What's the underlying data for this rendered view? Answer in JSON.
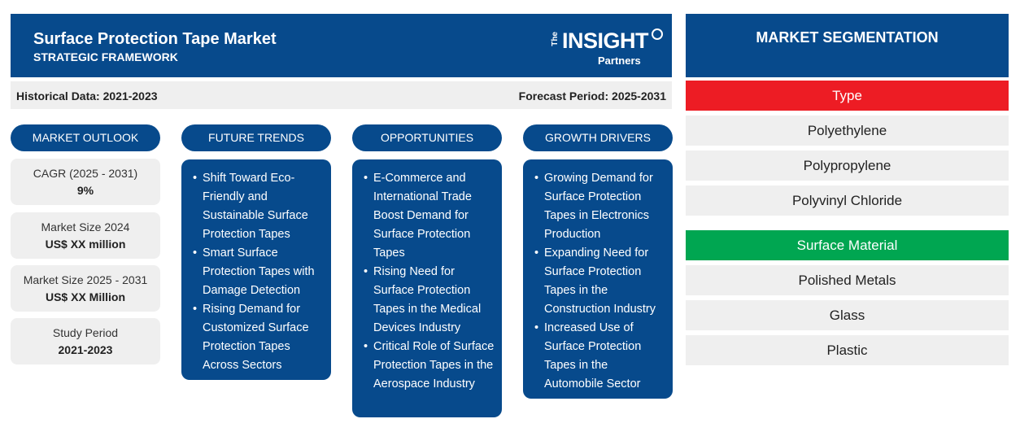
{
  "header": {
    "title": "Surface Protection Tape Market",
    "subtitle": "STRATEGIC FRAMEWORK",
    "logo": {
      "the": "The",
      "insight": "INSIGHT",
      "partners": "Partners"
    }
  },
  "periods": {
    "historical": "Historical Data: 2021-2023",
    "forecast": "Forecast Period: 2025-2031"
  },
  "columns": {
    "outlook": "MARKET OUTLOOK",
    "trends": "FUTURE TRENDS",
    "opportunities": "OPPORTUNITIES",
    "drivers": "GROWTH DRIVERS"
  },
  "outlook": [
    {
      "label": "CAGR (2025 - 2031)",
      "value": "9%"
    },
    {
      "label": "Market Size 2024",
      "value": "US$ XX million"
    },
    {
      "label": "Market Size 2025 - 2031",
      "value": "US$ XX Million"
    },
    {
      "label": "Study Period",
      "value": "2021-2023"
    }
  ],
  "trends": [
    "Shift Toward Eco-Friendly and Sustainable Surface Protection Tapes",
    "Smart Surface Protection Tapes with Damage Detection",
    "Rising Demand for Customized Surface Protection Tapes Across Sectors"
  ],
  "opportunities": [
    "E-Commerce and International Trade Boost Demand for Surface Protection Tapes",
    "Rising Need for Surface Protection Tapes in the Medical Devices Industry",
    "Critical Role of Surface Protection Tapes in the Aerospace Industry"
  ],
  "drivers": [
    "Growing Demand for Surface Protection Tapes in Electronics Production",
    "Expanding Need for Surface Protection Tapes in the Construction Industry",
    "Increased Use of Surface Protection Tapes in the Automobile Sector"
  ],
  "segmentation": {
    "title": "MARKET SEGMENTATION",
    "groups": [
      {
        "name": "Type",
        "color": "#ed1c24",
        "items": [
          "Polyethylene",
          "Polypropylene",
          "Polyvinyl Chloride"
        ]
      },
      {
        "name": "Surface Material",
        "color": "#00a651",
        "items": [
          "Polished Metals",
          "Glass",
          "Plastic"
        ]
      }
    ]
  },
  "colors": {
    "primary": "#074a8c",
    "panel": "#efefef"
  }
}
